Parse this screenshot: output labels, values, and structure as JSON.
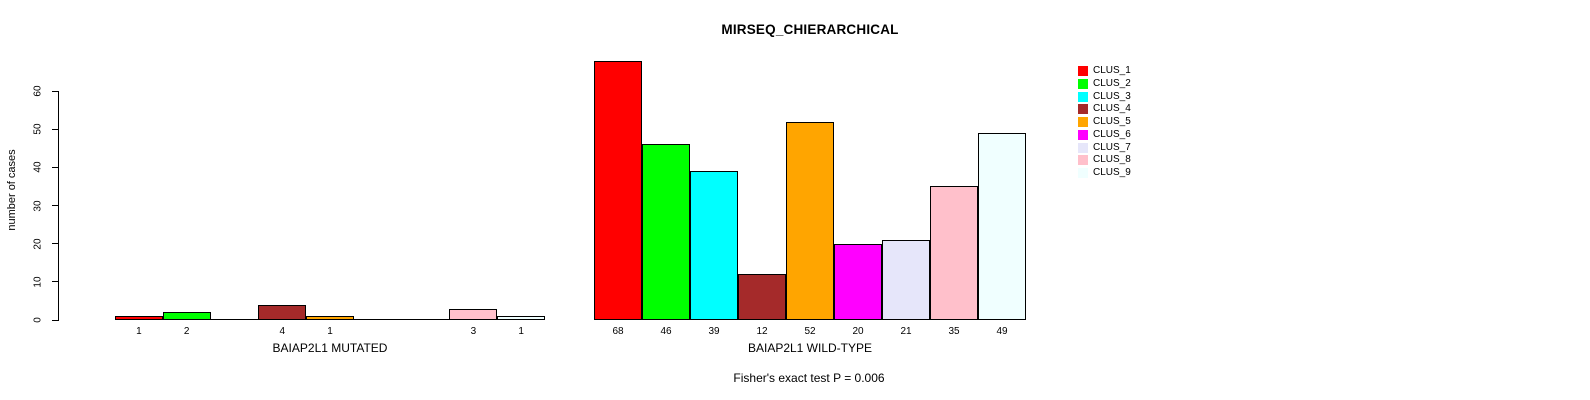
{
  "title": "MIRSEQ_CHIERARCHICAL",
  "subtitle": "Fisher's exact test P = 0.006",
  "chart_data": {
    "type": "bar",
    "title": "MIRSEQ_CHIERARCHICAL",
    "subtitle": "Fisher's exact test P = 0.006",
    "ylabel": "number of cases",
    "ylim": [
      0,
      60
    ],
    "yticks": [
      0,
      10,
      20,
      30,
      40,
      50,
      60
    ],
    "grid": false,
    "legend_position": "right",
    "categories": [
      "CLUS_1",
      "CLUS_2",
      "CLUS_3",
      "CLUS_4",
      "CLUS_5",
      "CLUS_6",
      "CLUS_7",
      "CLUS_8",
      "CLUS_9"
    ],
    "colors": [
      "#FF0000",
      "#00FF00",
      "#00FFFF",
      "#A52A2A",
      "#FFA500",
      "#FF00FF",
      "#E6E6FA",
      "#FFC0CB",
      "#F0FFFF"
    ],
    "legend": [
      {
        "label": "CLUS_1",
        "color": "#FF0000"
      },
      {
        "label": "CLUS_2",
        "color": "#00FF00"
      },
      {
        "label": "CLUS_3",
        "color": "#00FFFF"
      },
      {
        "label": "CLUS_4",
        "color": "#A52A2A"
      },
      {
        "label": "CLUS_5",
        "color": "#FFA500"
      },
      {
        "label": "CLUS_6",
        "color": "#FF00FF"
      },
      {
        "label": "CLUS_7",
        "color": "#E6E6FA"
      },
      {
        "label": "CLUS_8",
        "color": "#FFC0CB"
      },
      {
        "label": "CLUS_9",
        "color": "#F0FFFF"
      }
    ],
    "groups": [
      {
        "label": "BAIAP2L1 MUTATED",
        "values": [
          1,
          2,
          0,
          4,
          1,
          0,
          0,
          3,
          1
        ]
      },
      {
        "label": "BAIAP2L1 WILD-TYPE",
        "values": [
          68,
          46,
          39,
          12,
          52,
          20,
          21,
          35,
          49
        ]
      }
    ]
  }
}
